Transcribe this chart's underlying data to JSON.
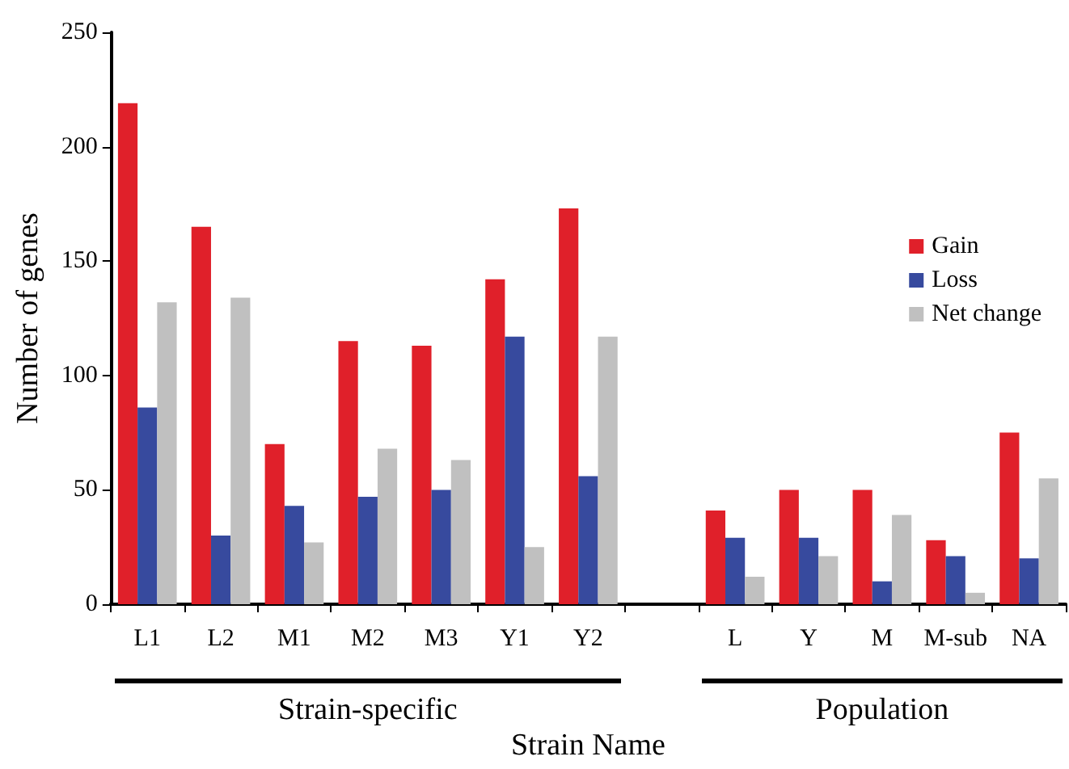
{
  "chart_data": {
    "type": "bar",
    "xlabel": "Strain Name",
    "ylabel": "Number of genes",
    "categories": [
      "L1",
      "L2",
      "M1",
      "M2",
      "M3",
      "Y1",
      "Y2",
      null,
      "L",
      "Y",
      "M",
      "M-sub",
      "NA"
    ],
    "series": [
      {
        "name": "Gain",
        "color": "#e0202a",
        "values": [
          219,
          165,
          70,
          115,
          113,
          142,
          173,
          null,
          41,
          50,
          50,
          28,
          75
        ]
      },
      {
        "name": "Loss",
        "color": "#374a9e",
        "values": [
          86,
          30,
          43,
          47,
          50,
          117,
          56,
          null,
          29,
          29,
          10,
          21,
          20
        ]
      },
      {
        "name": "Net change",
        "color": "#c0c0c0",
        "values": [
          132,
          134,
          27,
          68,
          63,
          25,
          117,
          null,
          12,
          21,
          39,
          5,
          55
        ]
      }
    ],
    "ylim": [
      0,
      250
    ],
    "yticks": [
      0,
      50,
      100,
      150,
      200,
      250
    ],
    "grid": false,
    "legend": "right",
    "annotations": [
      "Strain-specific",
      "Population"
    ]
  }
}
